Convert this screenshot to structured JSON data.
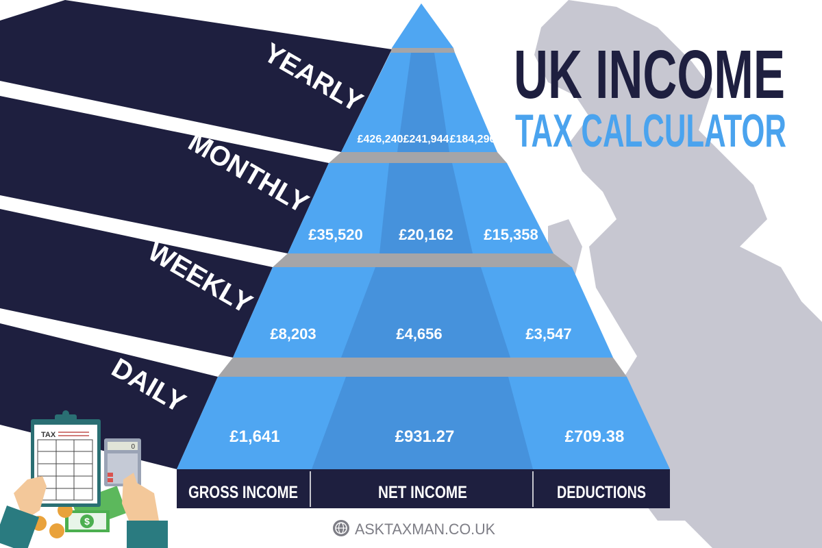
{
  "title": {
    "line1": "UK INCOME",
    "line2": "TAX CALCULATOR"
  },
  "periods": [
    "YEARLY",
    "MONTHLY",
    "WEEKLY",
    "DAILY"
  ],
  "columns": [
    "GROSS INCOME",
    "NET INCOME",
    "DEDUCTIONS"
  ],
  "rows": [
    {
      "period": "YEARLY",
      "gross": "£426,240",
      "net": "£241,944",
      "deductions": "£184,296"
    },
    {
      "period": "MONTHLY",
      "gross": "£35,520",
      "net": "£20,162",
      "deductions": "£15,358"
    },
    {
      "period": "WEEKLY",
      "gross": "£8,203",
      "net": "£4,656",
      "deductions": "£3,547"
    },
    {
      "period": "DAILY",
      "gross": "£1,641",
      "net": "£931.27",
      "deductions": "£709.38"
    }
  ],
  "illustration": {
    "clipboard_label": "TAX",
    "calculator_display": "0"
  },
  "footer": {
    "website": "ASKTAXMAN.CO.UK",
    "icon": "globe-icon"
  },
  "colors": {
    "navy": "#1e1f3f",
    "blue": "#4fa6f2",
    "blue_dark": "#4692dc",
    "title_blue": "#4aa3ee",
    "slab_gray": "#a5a5a8",
    "map_gray": "#c7c7d1"
  }
}
